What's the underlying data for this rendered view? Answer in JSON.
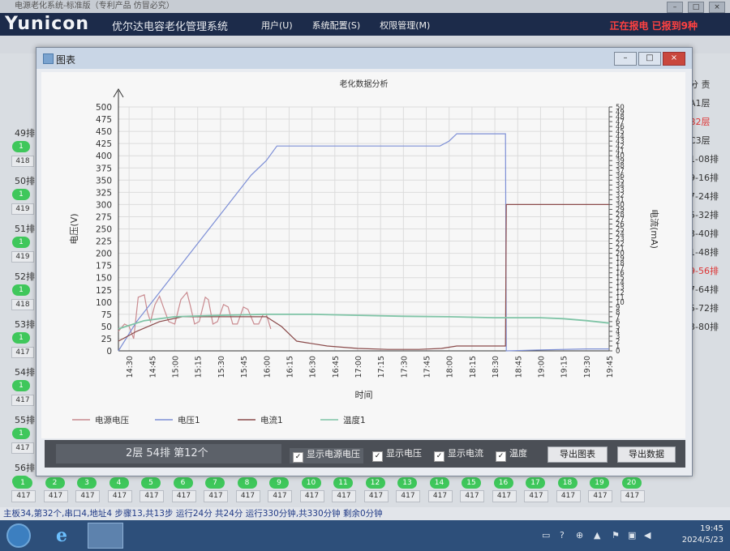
{
  "window_title": "电源老化系统-标准版（专利产品 仿冒必究）",
  "app": {
    "brand": "Yunicon",
    "name": "优尔达电容老化管理系统",
    "menus": [
      "用户(U)",
      "系统配置(S)",
      "权限管理(M)"
    ],
    "alarm": "正在报电 已报到9种"
  },
  "left_rows": [
    {
      "label": "49排",
      "pill": "1",
      "value": "418"
    },
    {
      "label": "50排",
      "pill": "1",
      "value": "419"
    },
    {
      "label": "51排",
      "pill": "1",
      "value": "419"
    },
    {
      "label": "52排",
      "pill": "1",
      "value": "418"
    },
    {
      "label": "53排",
      "pill": "1",
      "value": "417"
    },
    {
      "label": "54排",
      "pill": "1",
      "value": "417"
    },
    {
      "label": "55排",
      "pill": "1",
      "value": "417"
    },
    {
      "label": "56排",
      "pill": "1",
      "value": "417"
    }
  ],
  "right_items": [
    {
      "text": "分 责",
      "color": "#333"
    },
    {
      "text": "A1层",
      "color": "#333"
    },
    {
      "text": "B2层",
      "color": "#d33"
    },
    {
      "text": "C3层",
      "color": "#333"
    },
    {
      "text": "1-08排",
      "color": "#333"
    },
    {
      "text": "9-16排",
      "color": "#333"
    },
    {
      "text": "7-24排",
      "color": "#333"
    },
    {
      "text": "5-32排",
      "color": "#333"
    },
    {
      "text": "3-40排",
      "color": "#333"
    },
    {
      "text": "1-48排",
      "color": "#333"
    },
    {
      "text": "9-56排",
      "color": "#d33"
    },
    {
      "text": "7-64排",
      "color": "#333"
    },
    {
      "text": "5-72排",
      "color": "#333"
    },
    {
      "text": "3-80排",
      "color": "#333"
    }
  ],
  "bottom_pills": [
    "1",
    "2",
    "3",
    "4",
    "5",
    "6",
    "7",
    "8",
    "9",
    "10",
    "11",
    "12",
    "13",
    "14",
    "15",
    "16",
    "17",
    "18",
    "19",
    "20"
  ],
  "bottom_value": "417",
  "status_line": "主板34,第32个,串口4,地址4  步骤13,共13步  运行24分 共24分  运行330分钟,共330分钟  剩余0分钟",
  "clock": {
    "time": "19:45",
    "date": "2024/5/23"
  },
  "dialog": {
    "title": "图表",
    "info_text": "2层 54排 第12个",
    "checkboxes": [
      {
        "label": "显示电源电压",
        "checked": true
      },
      {
        "label": "显示电压",
        "checked": true
      },
      {
        "label": "显示电流",
        "checked": true
      },
      {
        "label": "温度",
        "checked": true
      }
    ],
    "export_chart": "导出图表",
    "export_data": "导出数据"
  },
  "chart_data": {
    "type": "line",
    "title": "老化数据分析",
    "xlabel": "时间",
    "ylabel": "电压(V)",
    "y2label": "电流(mA)",
    "ylim": [
      0,
      500
    ],
    "y2lim": [
      0,
      50
    ],
    "x_ticks": [
      "14:30",
      "14:45",
      "15:00",
      "15:15",
      "15:30",
      "15:45",
      "16:00",
      "16:15",
      "16:30",
      "16:45",
      "17:00",
      "17:15",
      "17:30",
      "17:45",
      "18:00",
      "18:15",
      "18:30",
      "18:45",
      "19:00",
      "19:15",
      "19:30",
      "19:45"
    ],
    "y_ticks": [
      0,
      25,
      50,
      75,
      100,
      125,
      150,
      175,
      200,
      225,
      250,
      275,
      300,
      325,
      350,
      375,
      400,
      425,
      450,
      475,
      500
    ],
    "y2_ticks": [
      0,
      1,
      2,
      3,
      4,
      5,
      6,
      7,
      8,
      9,
      10,
      11,
      12,
      13,
      14,
      15,
      16,
      17,
      18,
      19,
      20,
      21,
      22,
      23,
      24,
      25,
      26,
      27,
      28,
      29,
      30,
      31,
      32,
      33,
      34,
      35,
      36,
      37,
      38,
      39,
      40,
      41,
      42,
      43,
      44,
      45,
      46,
      47,
      48,
      49,
      50
    ],
    "colors": {
      "电源电压": "#c98a8f",
      "电压1": "#7d8fd6",
      "电流1": "#8a4a4a",
      "温度1": "#7fc4a6"
    },
    "legend": [
      "电源电压",
      "电压1",
      "电流1",
      "温度1"
    ],
    "legend_position": "bottom",
    "series": [
      {
        "name": "电源电压",
        "axis": "left",
        "x": [
          "14:23",
          "14:27",
          "14:30",
          "14:33",
          "14:36",
          "14:40",
          "14:42",
          "14:44",
          "14:47",
          "14:50",
          "14:53",
          "14:56",
          "15:00",
          "15:04",
          "15:08",
          "15:10",
          "15:13",
          "15:16",
          "15:20",
          "15:22",
          "15:25",
          "15:28",
          "15:32",
          "15:35",
          "15:38",
          "15:41",
          "15:45",
          "15:48",
          "15:52",
          "15:55",
          "15:58",
          "16:00",
          "16:03"
        ],
        "values": [
          40,
          55,
          50,
          25,
          110,
          115,
          80,
          60,
          95,
          112,
          85,
          60,
          55,
          105,
          120,
          95,
          55,
          60,
          110,
          105,
          55,
          60,
          95,
          90,
          55,
          55,
          90,
          85,
          55,
          55,
          75,
          75,
          45
        ]
      },
      {
        "name": "电压1",
        "axis": "left",
        "x": [
          "14:23",
          "14:35",
          "14:50",
          "15:05",
          "15:20",
          "15:35",
          "15:50",
          "16:00",
          "16:07",
          "16:30",
          "17:00",
          "17:30",
          "17:45",
          "17:54",
          "18:00",
          "18:05",
          "18:30",
          "18:37",
          "18:37.5",
          "19:00",
          "19:30",
          "19:45"
        ],
        "values": [
          0,
          60,
          120,
          180,
          240,
          300,
          360,
          390,
          420,
          420,
          420,
          420,
          420,
          420,
          430,
          445,
          445,
          445,
          0,
          2,
          4,
          4
        ]
      },
      {
        "name": "电流1",
        "axis": "right",
        "x": [
          "14:23",
          "14:35",
          "14:50",
          "15:05",
          "15:20",
          "15:35",
          "15:50",
          "16:00",
          "16:10",
          "16:20",
          "16:40",
          "17:00",
          "17:20",
          "17:40",
          "17:55",
          "18:05",
          "18:20",
          "18:37",
          "18:37.5",
          "18:50",
          "19:20",
          "19:45"
        ],
        "values": [
          2,
          4,
          6,
          7,
          7,
          7,
          7,
          7,
          5,
          2,
          1,
          0.5,
          0.3,
          0.3,
          0.5,
          1,
          1,
          1,
          30,
          30,
          30,
          30
        ]
      },
      {
        "name": "温度1",
        "axis": "left",
        "x": [
          "14:23",
          "14:40",
          "15:00",
          "15:30",
          "16:00",
          "16:30",
          "17:00",
          "17:30",
          "18:00",
          "18:30",
          "19:00",
          "19:15",
          "19:30",
          "19:45"
        ],
        "values": [
          45,
          62,
          70,
          73,
          75,
          75,
          73,
          71,
          70,
          68,
          68,
          66,
          62,
          57
        ]
      }
    ]
  }
}
